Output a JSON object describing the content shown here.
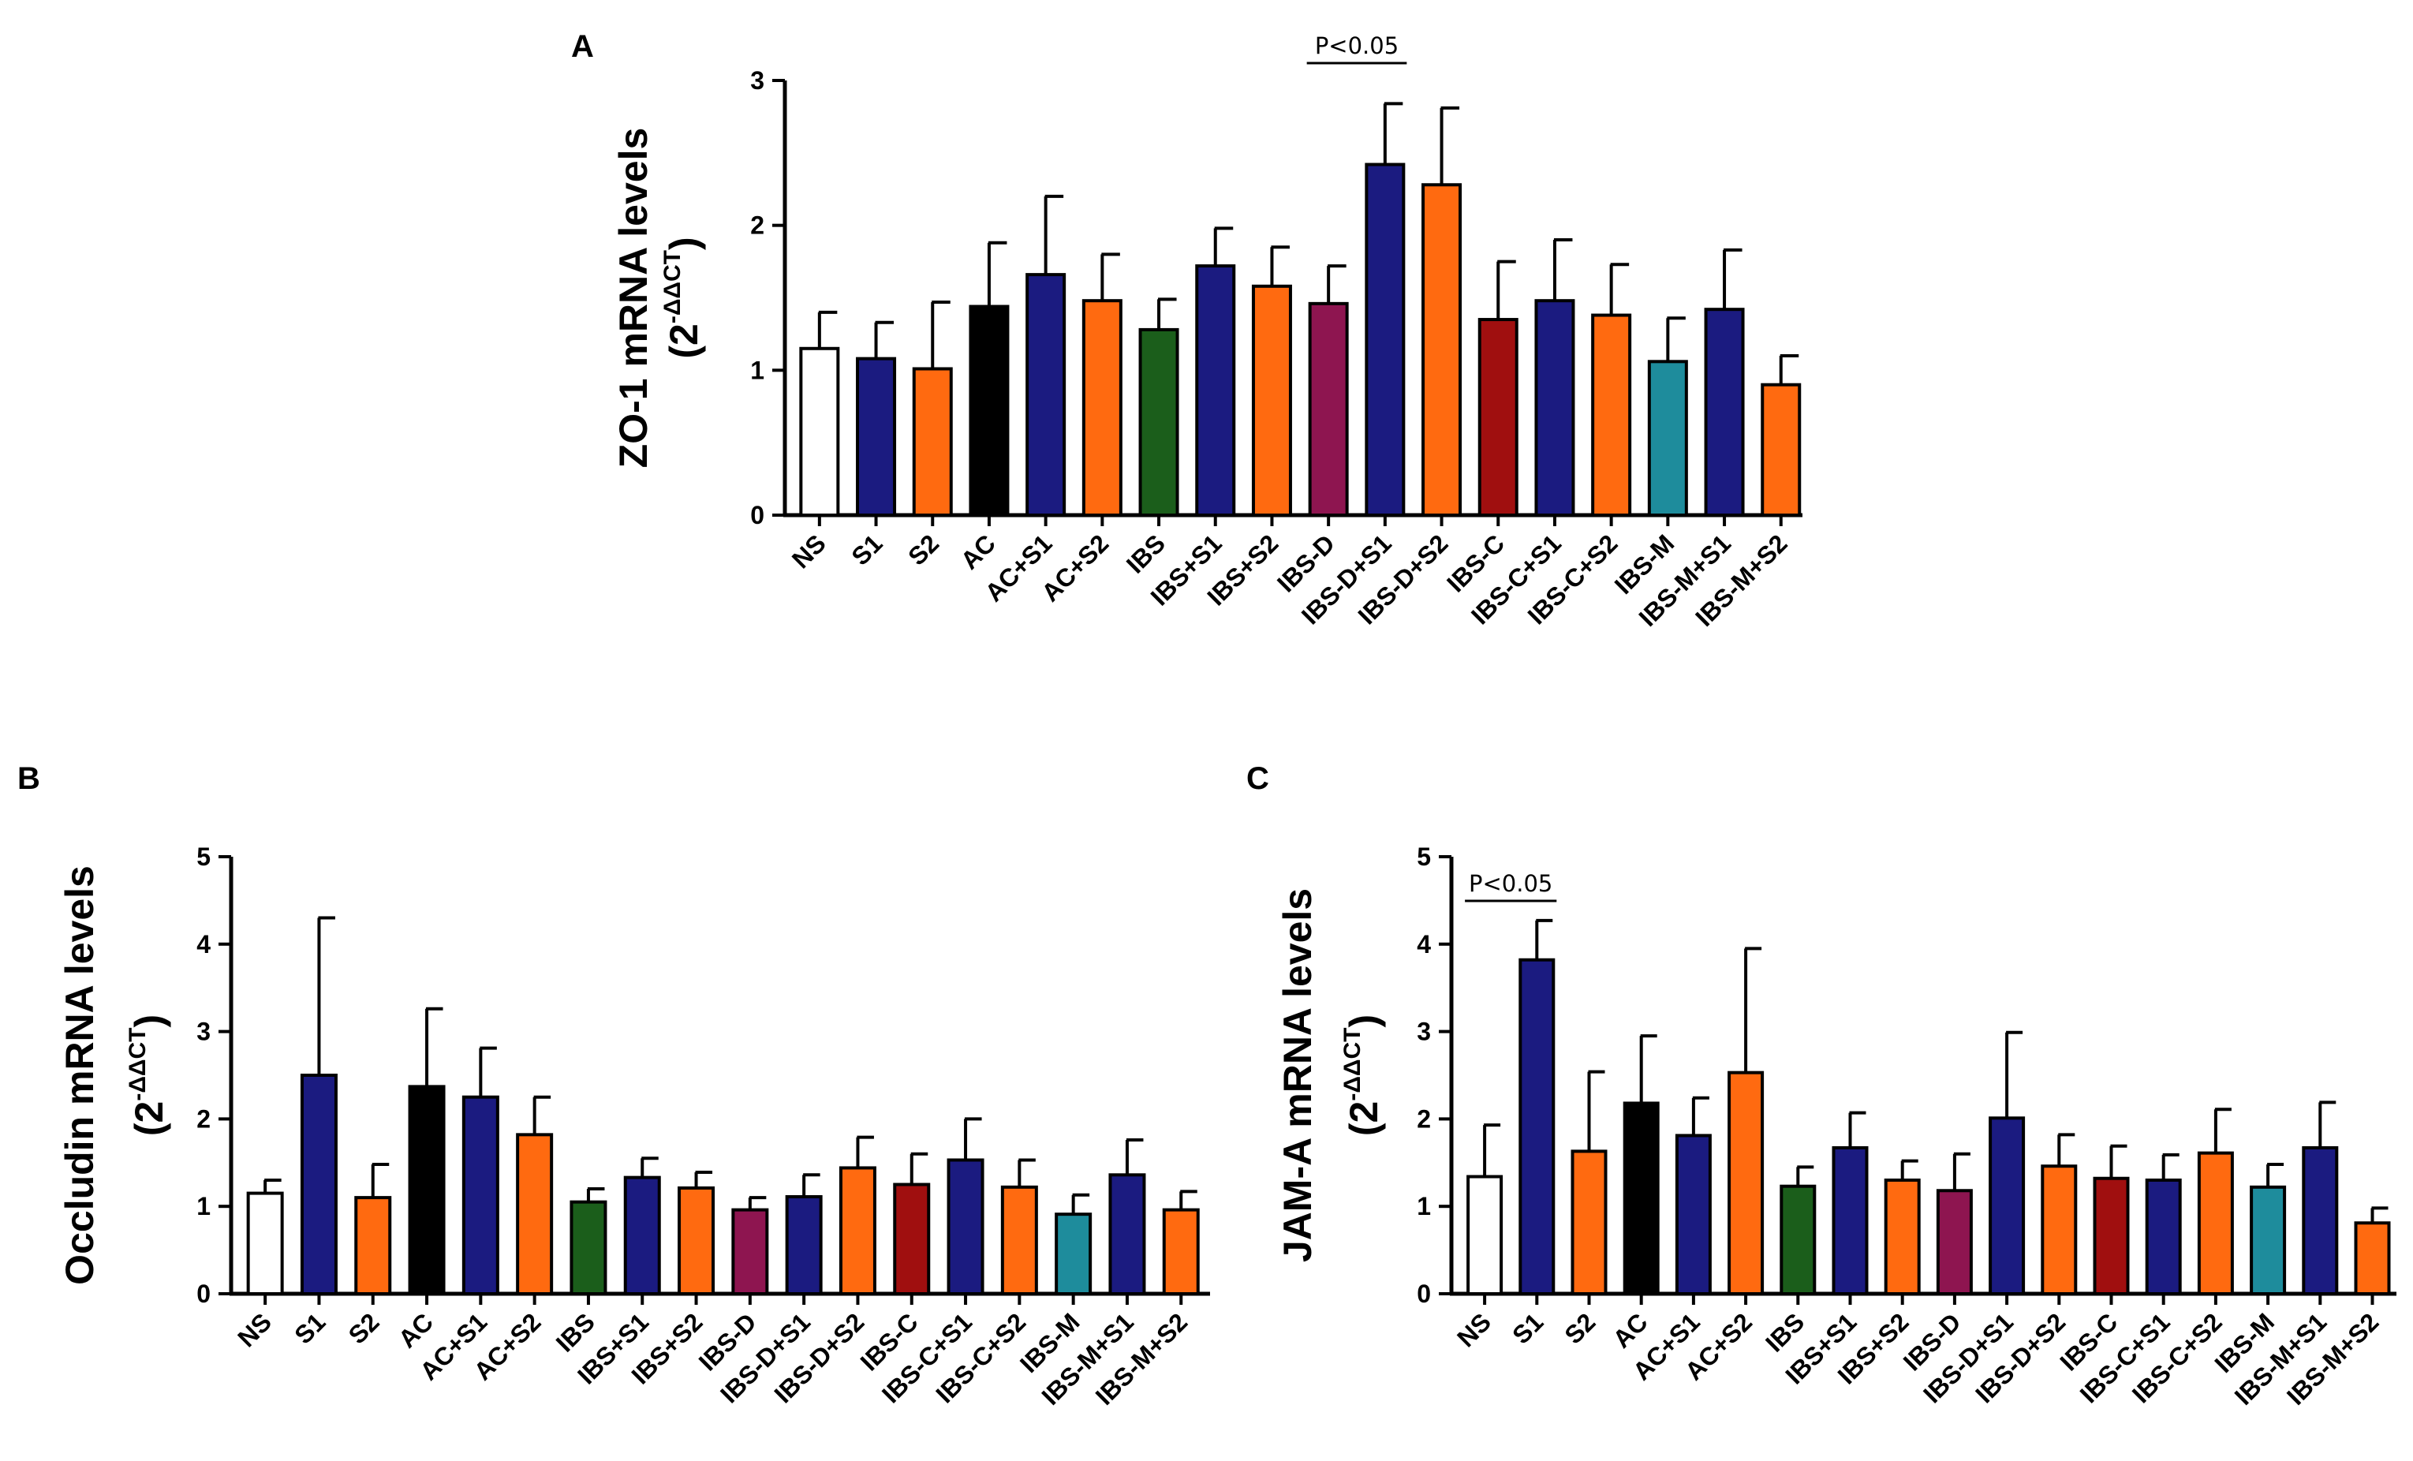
{
  "chart_data": [
    {
      "panel": "A",
      "type": "bar",
      "title": "",
      "ylabel": "ZO-1 mRNA levels",
      "ylabel_unit": "(2",
      "ylabel_exp": "-ΔΔCT",
      "ylabel_close": ")",
      "ylim": [
        0,
        3
      ],
      "yticks": [
        "0",
        "1",
        "2",
        "3"
      ],
      "categories": [
        "NS",
        "S1",
        "S2",
        "AC",
        "AC+S1",
        "AC+S2",
        "IBS",
        "IBS+S1",
        "IBS+S2",
        "IBS-D",
        "IBS-D+S1",
        "IBS-D+S2",
        "IBS-C",
        "IBS-C+S1",
        "IBS-C+S2",
        "IBS-M",
        "IBS-M+S1",
        "IBS-M+S2"
      ],
      "values": [
        1.15,
        1.08,
        1.01,
        1.44,
        1.66,
        1.48,
        1.28,
        1.72,
        1.58,
        1.46,
        2.42,
        2.28,
        1.35,
        1.48,
        1.38,
        1.06,
        1.42,
        0.9
      ],
      "errors": [
        0.25,
        0.25,
        0.46,
        0.44,
        0.54,
        0.32,
        0.21,
        0.26,
        0.27,
        0.26,
        0.42,
        0.53,
        0.4,
        0.42,
        0.35,
        0.3,
        0.41,
        0.2
      ],
      "colors": [
        "#ffffff",
        "#1b1b80",
        "#ff6a10",
        "#000000",
        "#1b1b80",
        "#ff6a10",
        "#1b5e1b",
        "#1b1b80",
        "#ff6a10",
        "#8e1550",
        "#1b1b80",
        "#ff6a10",
        "#a00f0f",
        "#1b1b80",
        "#ff6a10",
        "#1e8c9c",
        "#1b1b80",
        "#ff6a10"
      ],
      "annotation": {
        "text": "P<0.05",
        "from": "IBS-D",
        "to": "IBS-D+S1"
      }
    },
    {
      "panel": "B",
      "type": "bar",
      "title": "",
      "ylabel": "Occludin mRNA levels",
      "ylabel_unit": "(2",
      "ylabel_exp": "-ΔΔCT",
      "ylabel_close": ")",
      "ylim": [
        0,
        5
      ],
      "yticks": [
        "0",
        "1",
        "2",
        "3",
        "4",
        "5"
      ],
      "categories": [
        "NS",
        "S1",
        "S2",
        "AC",
        "AC+S1",
        "AC+S2",
        "IBS",
        "IBS+S1",
        "IBS+S2",
        "IBS-D",
        "IBS-D+S1",
        "IBS-D+S2",
        "IBS-C",
        "IBS-C+S1",
        "IBS-C+S2",
        "IBS-M",
        "IBS-M+S1",
        "IBS-M+S2"
      ],
      "values": [
        1.15,
        2.5,
        1.1,
        2.37,
        2.25,
        1.82,
        1.05,
        1.33,
        1.21,
        0.96,
        1.11,
        1.44,
        1.25,
        1.53,
        1.22,
        0.91,
        1.36,
        0.96
      ],
      "errors": [
        0.15,
        1.8,
        0.38,
        0.89,
        0.56,
        0.43,
        0.15,
        0.22,
        0.18,
        0.14,
        0.25,
        0.35,
        0.35,
        0.47,
        0.31,
        0.22,
        0.4,
        0.21
      ],
      "colors": [
        "#ffffff",
        "#1b1b80",
        "#ff6a10",
        "#000000",
        "#1b1b80",
        "#ff6a10",
        "#1b5e1b",
        "#1b1b80",
        "#ff6a10",
        "#8e1550",
        "#1b1b80",
        "#ff6a10",
        "#a00f0f",
        "#1b1b80",
        "#ff6a10",
        "#1e8c9c",
        "#1b1b80",
        "#ff6a10"
      ]
    },
    {
      "panel": "C",
      "type": "bar",
      "title": "",
      "ylabel": "JAM-A mRNA levels",
      "ylabel_unit": "(2",
      "ylabel_exp": "-ΔΔCT",
      "ylabel_close": ")",
      "ylim": [
        0,
        5
      ],
      "yticks": [
        "0",
        "1",
        "2",
        "3",
        "4",
        "5"
      ],
      "categories": [
        "NS",
        "S1",
        "S2",
        "AC",
        "AC+S1",
        "AC+S2",
        "IBS",
        "IBS+S1",
        "IBS+S2",
        "IBS-D",
        "IBS-D+S1",
        "IBS-D+S2",
        "IBS-C",
        "IBS-C+S1",
        "IBS-C+S2",
        "IBS-M",
        "IBS-M+S1",
        "IBS-M+S2"
      ],
      "values": [
        1.34,
        3.82,
        1.63,
        2.18,
        1.81,
        2.53,
        1.23,
        1.67,
        1.3,
        1.18,
        2.01,
        1.46,
        1.32,
        1.3,
        1.61,
        1.22,
        1.67,
        0.81
      ],
      "errors": [
        0.59,
        0.45,
        0.91,
        0.77,
        0.43,
        1.42,
        0.22,
        0.4,
        0.22,
        0.42,
        0.98,
        0.36,
        0.37,
        0.29,
        0.5,
        0.26,
        0.52,
        0.17
      ],
      "colors": [
        "#ffffff",
        "#1b1b80",
        "#ff6a10",
        "#000000",
        "#1b1b80",
        "#ff6a10",
        "#1b5e1b",
        "#1b1b80",
        "#ff6a10",
        "#8e1550",
        "#1b1b80",
        "#ff6a10",
        "#a00f0f",
        "#1b1b80",
        "#ff6a10",
        "#1e8c9c",
        "#1b1b80",
        "#ff6a10"
      ],
      "annotation": {
        "text": "P<0.05",
        "from": "NS",
        "to": "S1"
      }
    }
  ]
}
